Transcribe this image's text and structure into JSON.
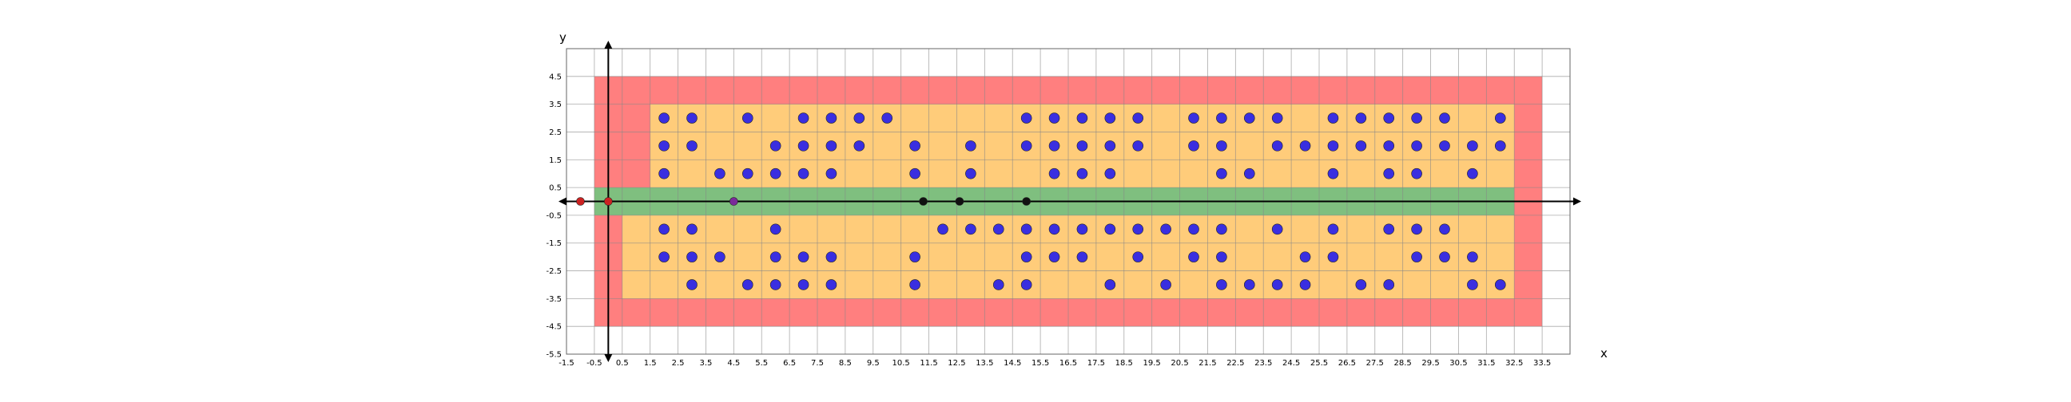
{
  "chart_data": {
    "type": "scatter",
    "title": "",
    "xlabel": "x",
    "ylabel": "y",
    "xlim": [
      -1.5,
      34.5
    ],
    "ylim": [
      -5.5,
      5.5
    ],
    "grid": true,
    "x_ticks": [
      "-1.5",
      "-0.5",
      "0.5",
      "1.5",
      "2.5",
      "3.5",
      "4.5",
      "5.5",
      "6.5",
      "7.5",
      "8.5",
      "9.5",
      "10.5",
      "11.5",
      "12.5",
      "13.5",
      "14.5",
      "15.5",
      "16.5",
      "17.5",
      "18.5",
      "19.5",
      "20.5",
      "21.5",
      "22.5",
      "23.5",
      "24.5",
      "25.5",
      "26.5",
      "27.5",
      "28.5",
      "29.5",
      "30.5",
      "31.5",
      "32.5",
      "33.5"
    ],
    "y_ticks": [
      "4.5",
      "3.5",
      "2.5",
      "1.5",
      "0.5",
      "-0.5",
      "-1.5",
      "-2.5",
      "-3.5",
      "-4.5",
      "-5.5"
    ],
    "regions": [
      {
        "name": "outer-zone",
        "color": "#ff7f7f",
        "x": [
          -0.5,
          33.5
        ],
        "y": [
          -4.5,
          4.5
        ]
      },
      {
        "name": "inner-zone",
        "color": "#ffcc7a",
        "x": [
          0.5,
          32.5
        ],
        "y": [
          -3.5,
          3.5
        ]
      },
      {
        "name": "inner-notch",
        "color": "#ff7f7f",
        "x": [
          0.5,
          1.5
        ],
        "y": [
          0.5,
          3.5
        ]
      },
      {
        "name": "lane-zone",
        "color": "#7fbf7f",
        "x": [
          -0.5,
          32.5
        ],
        "y": [
          -0.5,
          0.5
        ]
      }
    ],
    "points": {
      "blue": [
        [
          2,
          3
        ],
        [
          3,
          3
        ],
        [
          5,
          3
        ],
        [
          7,
          3
        ],
        [
          8,
          3
        ],
        [
          9,
          3
        ],
        [
          10,
          3
        ],
        [
          15,
          3
        ],
        [
          16,
          3
        ],
        [
          17,
          3
        ],
        [
          18,
          3
        ],
        [
          19,
          3
        ],
        [
          21,
          3
        ],
        [
          22,
          3
        ],
        [
          23,
          3
        ],
        [
          24,
          3
        ],
        [
          26,
          3
        ],
        [
          27,
          3
        ],
        [
          28,
          3
        ],
        [
          29,
          3
        ],
        [
          30,
          3
        ],
        [
          32,
          3
        ],
        [
          2,
          2
        ],
        [
          3,
          2
        ],
        [
          6,
          2
        ],
        [
          7,
          2
        ],
        [
          8,
          2
        ],
        [
          9,
          2
        ],
        [
          11,
          2
        ],
        [
          13,
          2
        ],
        [
          15,
          2
        ],
        [
          16,
          2
        ],
        [
          17,
          2
        ],
        [
          18,
          2
        ],
        [
          19,
          2
        ],
        [
          21,
          2
        ],
        [
          22,
          2
        ],
        [
          24,
          2
        ],
        [
          25,
          2
        ],
        [
          26,
          2
        ],
        [
          27,
          2
        ],
        [
          28,
          2
        ],
        [
          29,
          2
        ],
        [
          30,
          2
        ],
        [
          31,
          2
        ],
        [
          32,
          2
        ],
        [
          2,
          1
        ],
        [
          4,
          1
        ],
        [
          5,
          1
        ],
        [
          6,
          1
        ],
        [
          7,
          1
        ],
        [
          8,
          1
        ],
        [
          11,
          1
        ],
        [
          13,
          1
        ],
        [
          16,
          1
        ],
        [
          17,
          1
        ],
        [
          18,
          1
        ],
        [
          22,
          1
        ],
        [
          23,
          1
        ],
        [
          26,
          1
        ],
        [
          28,
          1
        ],
        [
          29,
          1
        ],
        [
          31,
          1
        ],
        [
          2,
          -1
        ],
        [
          3,
          -1
        ],
        [
          6,
          -1
        ],
        [
          12,
          -1
        ],
        [
          13,
          -1
        ],
        [
          14,
          -1
        ],
        [
          15,
          -1
        ],
        [
          16,
          -1
        ],
        [
          17,
          -1
        ],
        [
          18,
          -1
        ],
        [
          19,
          -1
        ],
        [
          20,
          -1
        ],
        [
          21,
          -1
        ],
        [
          22,
          -1
        ],
        [
          24,
          -1
        ],
        [
          26,
          -1
        ],
        [
          28,
          -1
        ],
        [
          29,
          -1
        ],
        [
          30,
          -1
        ],
        [
          2,
          -2
        ],
        [
          3,
          -2
        ],
        [
          4,
          -2
        ],
        [
          6,
          -2
        ],
        [
          7,
          -2
        ],
        [
          8,
          -2
        ],
        [
          11,
          -2
        ],
        [
          15,
          -2
        ],
        [
          16,
          -2
        ],
        [
          17,
          -2
        ],
        [
          19,
          -2
        ],
        [
          21,
          -2
        ],
        [
          22,
          -2
        ],
        [
          25,
          -2
        ],
        [
          26,
          -2
        ],
        [
          29,
          -2
        ],
        [
          30,
          -2
        ],
        [
          31,
          -2
        ],
        [
          3,
          -3
        ],
        [
          5,
          -3
        ],
        [
          6,
          -3
        ],
        [
          7,
          -3
        ],
        [
          8,
          -3
        ],
        [
          11,
          -3
        ],
        [
          14,
          -3
        ],
        [
          15,
          -3
        ],
        [
          18,
          -3
        ],
        [
          20,
          -3
        ],
        [
          22,
          -3
        ],
        [
          23,
          -3
        ],
        [
          24,
          -3
        ],
        [
          25,
          -3
        ],
        [
          27,
          -3
        ],
        [
          28,
          -3
        ],
        [
          31,
          -3
        ],
        [
          32,
          -3
        ]
      ],
      "red": [
        [
          -1,
          0
        ],
        [
          0,
          0
        ]
      ],
      "purple": [
        [
          4.5,
          0
        ]
      ],
      "black": [
        [
          11.3,
          0
        ],
        [
          12.6,
          0
        ],
        [
          15,
          0
        ]
      ]
    },
    "colors": {
      "blue": "#3a2ee0",
      "red": "#cc2222",
      "purple": "#7a2a9a",
      "black": "#111111",
      "grid": "#888888",
      "axis": "#000000"
    }
  }
}
